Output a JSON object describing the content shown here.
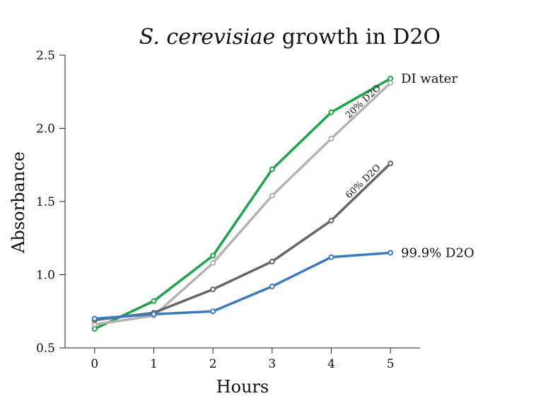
{
  "chart_data": {
    "type": "line",
    "title": "S. cerevisiae growth in D2O",
    "title_parts": {
      "italic": "S. cerevisiae",
      "rest": " growth in D2O"
    },
    "xlabel": "Hours",
    "ylabel": "Absorbance",
    "x": [
      0,
      1,
      2,
      3,
      4,
      5
    ],
    "xlim": [
      -0.5,
      5.5
    ],
    "ylim": [
      0.5,
      2.5
    ],
    "xticks": [
      "0",
      "1",
      "2",
      "3",
      "4",
      "5"
    ],
    "yticks": [
      "0.5",
      "1.0",
      "1.5",
      "2.0",
      "2.5"
    ],
    "grid": false,
    "legend": "none (direct labels at line ends)",
    "series": [
      {
        "name": "DI water",
        "color": "#1fa34a",
        "values": [
          0.63,
          0.82,
          1.13,
          1.72,
          2.11,
          2.34
        ]
      },
      {
        "name": "20% D2O",
        "color": "#b3b3b3",
        "values": [
          0.66,
          0.72,
          1.08,
          1.54,
          1.93,
          2.31
        ]
      },
      {
        "name": "60% D2O",
        "color": "#666666",
        "values": [
          0.69,
          0.74,
          0.9,
          1.09,
          1.37,
          1.76
        ]
      },
      {
        "name": "99.9% D2O",
        "color": "#3f7abf",
        "values": [
          0.7,
          0.73,
          0.75,
          0.92,
          1.12,
          1.15
        ]
      }
    ]
  }
}
